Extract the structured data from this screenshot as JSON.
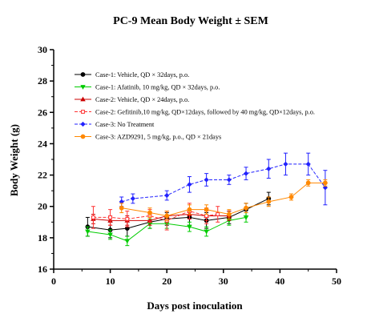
{
  "chart_data": {
    "type": "line",
    "title": "PC-9 Mean Body Weight ± SEM",
    "xlabel": "Days post inoculation",
    "ylabel": "Body Weight (g)",
    "xlim": [
      0,
      50
    ],
    "ylim": [
      16,
      30
    ],
    "x_ticks": [
      0,
      10,
      20,
      30,
      40,
      50
    ],
    "y_ticks": [
      16,
      18,
      20,
      22,
      24,
      26,
      28,
      30
    ],
    "grid": false,
    "legend_position": "upper-left",
    "series": [
      {
        "name": "Case-1: Vehicle, QD × 32days, p.o.",
        "color": "#000000",
        "marker": "circle",
        "line": "solid",
        "x": [
          6,
          10,
          13,
          17,
          20,
          24,
          27,
          31,
          34,
          38
        ],
        "y": [
          18.7,
          18.5,
          18.6,
          19.0,
          19.2,
          19.3,
          19.1,
          19.3,
          19.8,
          20.5
        ],
        "err": [
          0.6,
          0.5,
          0.5,
          0.4,
          0.4,
          0.5,
          0.5,
          0.4,
          0.4,
          0.4
        ]
      },
      {
        "name": "Case-1: Afatinib, 10 mg/kg, QD × 32days, p.o.",
        "color": "#00cc00",
        "marker": "triangle-down",
        "line": "solid",
        "x": [
          6,
          10,
          13,
          17,
          20,
          24,
          27,
          31,
          34
        ],
        "y": [
          18.4,
          18.2,
          17.8,
          18.9,
          18.9,
          18.7,
          18.4,
          19.1,
          19.3
        ],
        "err": [
          0.3,
          0.3,
          0.3,
          0.3,
          0.3,
          0.3,
          0.3,
          0.3,
          0.3
        ]
      },
      {
        "name": "Case-2: Vehicle, QD × 24days, p.o.",
        "color": "#cc0000",
        "marker": "triangle-up",
        "line": "solid",
        "x": [
          7,
          10,
          13,
          17,
          20,
          24,
          27,
          31
        ],
        "y": [
          19.2,
          19.1,
          19.1,
          19.1,
          19.4,
          19.5,
          19.4,
          19.4
        ],
        "err": [
          0.3,
          0.3,
          0.3,
          0.3,
          0.3,
          0.3,
          0.3,
          0.3
        ]
      },
      {
        "name": "Case-2: Gefitinib,10 mg/kg, QD×12days, followed by 40 mg/kg, QD×12days, p.o.",
        "color": "#ff3333",
        "marker": "square-open",
        "line": "dashed",
        "x": [
          7,
          10,
          13,
          17,
          20,
          24,
          27,
          29
        ],
        "y": [
          19.3,
          19.3,
          19.2,
          19.4,
          19.1,
          19.7,
          19.4,
          19.5
        ],
        "err": [
          0.7,
          0.5,
          0.5,
          0.4,
          0.6,
          0.5,
          0.5,
          0.5
        ]
      },
      {
        "name": "Case-3: No Treatment",
        "color": "#2222ff",
        "marker": "diamond",
        "line": "dashed",
        "x": [
          12,
          14,
          20,
          24,
          27,
          31,
          34,
          38,
          41,
          45,
          48
        ],
        "y": [
          20.3,
          20.5,
          20.7,
          21.4,
          21.7,
          21.7,
          22.1,
          22.4,
          22.7,
          22.7,
          21.2
        ],
        "err": [
          0.3,
          0.3,
          0.3,
          0.5,
          0.4,
          0.3,
          0.4,
          0.6,
          0.7,
          0.7,
          1.1
        ]
      },
      {
        "name": "Case-3: AZD9291, 5 mg/kg, p.o., QD × 21days",
        "color": "#ff8800",
        "marker": "circle",
        "line": "solid",
        "x": [
          12,
          17,
          20,
          24,
          27,
          31,
          34,
          38,
          42,
          45,
          48
        ],
        "y": [
          19.9,
          19.6,
          19.4,
          19.8,
          19.8,
          19.5,
          19.9,
          20.3,
          20.6,
          21.5,
          21.5
        ],
        "err": [
          0.3,
          0.3,
          0.3,
          0.3,
          0.3,
          0.3,
          0.3,
          0.3,
          0.2,
          0.2,
          0.2
        ]
      }
    ]
  }
}
